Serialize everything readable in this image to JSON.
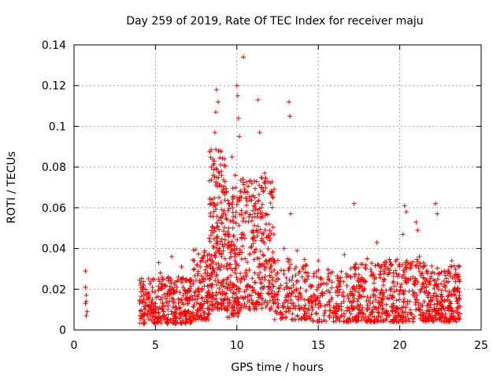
{
  "chart_data": {
    "type": "scatter",
    "title": "Day 259 of 2019, Rate Of TEC Index for receiver maju",
    "xlabel": "GPS time / hours",
    "ylabel": "ROTI / TECUs",
    "xlim": [
      0,
      25
    ],
    "ylim": [
      0,
      0.14
    ],
    "x_ticks": [
      0,
      5,
      10,
      15,
      20,
      25
    ],
    "x_tick_labels": [
      "0",
      "5",
      "10",
      "15",
      "20",
      "25"
    ],
    "y_ticks": [
      0,
      0.02,
      0.04,
      0.06,
      0.08,
      0.1,
      0.12,
      0.14
    ],
    "y_tick_labels": [
      "0",
      "0.02",
      "0.04",
      "0.06",
      "0.08",
      "0.1",
      "0.12",
      "0.14"
    ],
    "grid": true,
    "marker": "plus",
    "marker_color": "#ff0000",
    "series": [
      {
        "name": "ROTI",
        "points": [
          [
            0.7,
            0.029
          ],
          [
            0.7,
            0.021
          ],
          [
            0.75,
            0.017
          ],
          [
            0.75,
            0.014
          ],
          [
            0.7,
            0.013
          ],
          [
            0.8,
            0.009
          ],
          [
            0.75,
            0.007
          ],
          [
            4.1,
            0.023
          ],
          [
            4.2,
            0.02
          ],
          [
            4.3,
            0.017
          ],
          [
            4.2,
            0.014
          ],
          [
            4.4,
            0.012
          ],
          [
            4.1,
            0.009
          ],
          [
            4.5,
            0.007
          ],
          [
            4.3,
            0.005
          ],
          [
            4.6,
            0.015
          ],
          [
            4.7,
            0.011
          ],
          [
            4.8,
            0.019
          ],
          [
            4.9,
            0.008
          ],
          [
            5.0,
            0.013
          ],
          [
            5.1,
            0.006
          ],
          [
            5.2,
            0.033
          ],
          [
            5.3,
            0.028
          ],
          [
            5.2,
            0.01
          ],
          [
            5.4,
            0.016
          ],
          [
            5.5,
            0.009
          ],
          [
            5.6,
            0.022
          ],
          [
            5.7,
            0.004
          ],
          [
            5.8,
            0.012
          ],
          [
            5.9,
            0.018
          ],
          [
            6.0,
            0.036
          ],
          [
            6.1,
            0.014
          ],
          [
            6.2,
            0.007
          ],
          [
            6.3,
            0.021
          ],
          [
            6.4,
            0.026
          ],
          [
            6.5,
            0.011
          ],
          [
            6.6,
            0.031
          ],
          [
            6.7,
            0.017
          ],
          [
            6.8,
            0.008
          ],
          [
            6.9,
            0.024
          ],
          [
            7.0,
            0.013
          ],
          [
            7.1,
            0.019
          ],
          [
            7.4,
            0.03
          ],
          [
            7.6,
            0.02
          ],
          [
            7.8,
            0.012
          ],
          [
            7.9,
            0.025
          ],
          [
            8.0,
            0.038
          ],
          [
            8.1,
            0.016
          ],
          [
            8.2,
            0.028
          ],
          [
            8.3,
            0.045
          ],
          [
            8.4,
            0.022
          ],
          [
            8.5,
            0.034
          ],
          [
            8.55,
            0.081
          ],
          [
            8.6,
            0.05
          ],
          [
            8.65,
            0.097
          ],
          [
            8.7,
            0.107
          ],
          [
            8.75,
            0.118
          ],
          [
            8.8,
            0.072
          ],
          [
            8.85,
            0.112
          ],
          [
            8.9,
            0.065
          ],
          [
            8.95,
            0.088
          ],
          [
            9.0,
            0.055
          ],
          [
            9.05,
            0.078
          ],
          [
            9.1,
            0.042
          ],
          [
            9.15,
            0.069
          ],
          [
            9.2,
            0.031
          ],
          [
            9.25,
            0.084
          ],
          [
            9.3,
            0.047
          ],
          [
            9.4,
            0.025
          ],
          [
            9.5,
            0.062
          ],
          [
            9.6,
            0.038
          ],
          [
            9.7,
            0.085
          ],
          [
            9.8,
            0.053
          ],
          [
            9.9,
            0.076
          ],
          [
            10.0,
            0.12
          ],
          [
            10.05,
            0.115
          ],
          [
            10.1,
            0.104
          ],
          [
            10.15,
            0.095
          ],
          [
            10.2,
            0.068
          ],
          [
            10.3,
            0.045
          ],
          [
            10.4,
            0.134
          ],
          [
            10.5,
            0.035
          ],
          [
            10.6,
            0.058
          ],
          [
            10.7,
            0.022
          ],
          [
            10.8,
            0.073
          ],
          [
            10.9,
            0.041
          ],
          [
            11.0,
            0.066
          ],
          [
            11.1,
            0.028
          ],
          [
            11.2,
            0.049
          ],
          [
            11.3,
            0.113
          ],
          [
            11.4,
            0.097
          ],
          [
            11.5,
            0.06
          ],
          [
            11.6,
            0.037
          ],
          [
            11.7,
            0.077
          ],
          [
            11.8,
            0.052
          ],
          [
            11.9,
            0.073
          ],
          [
            12.0,
            0.044
          ],
          [
            12.1,
            0.018
          ],
          [
            12.2,
            0.065
          ],
          [
            12.3,
            0.034
          ],
          [
            12.5,
            0.028
          ],
          [
            12.7,
            0.022
          ],
          [
            12.9,
            0.04
          ],
          [
            13.0,
            0.016
          ],
          [
            13.2,
            0.112
          ],
          [
            13.25,
            0.105
          ],
          [
            13.3,
            0.057
          ],
          [
            13.5,
            0.019
          ],
          [
            13.7,
            0.039
          ],
          [
            13.8,
            0.012
          ],
          [
            14.0,
            0.026
          ],
          [
            14.2,
            0.009
          ],
          [
            14.5,
            0.022
          ],
          [
            14.7,
            0.014
          ],
          [
            14.9,
            0.008
          ],
          [
            15.0,
            0.034
          ],
          [
            15.2,
            0.018
          ],
          [
            15.4,
            0.012
          ],
          [
            15.6,
            0.026
          ],
          [
            15.8,
            0.015
          ],
          [
            16.0,
            0.009
          ],
          [
            16.2,
            0.021
          ],
          [
            16.4,
            0.013
          ],
          [
            16.6,
            0.037
          ],
          [
            16.8,
            0.011
          ],
          [
            17.0,
            0.018
          ],
          [
            17.2,
            0.062
          ],
          [
            17.4,
            0.014
          ],
          [
            17.6,
            0.024
          ],
          [
            17.8,
            0.008
          ],
          [
            18.0,
            0.035
          ],
          [
            18.2,
            0.016
          ],
          [
            18.4,
            0.027
          ],
          [
            18.6,
            0.043
          ],
          [
            18.8,
            0.012
          ],
          [
            19.0,
            0.022
          ],
          [
            19.2,
            0.009
          ],
          [
            19.4,
            0.017
          ],
          [
            19.6,
            0.028
          ],
          [
            19.8,
            0.011
          ],
          [
            20.0,
            0.019
          ],
          [
            20.2,
            0.047
          ],
          [
            20.3,
            0.061
          ],
          [
            20.4,
            0.058
          ],
          [
            20.6,
            0.014
          ],
          [
            20.8,
            0.026
          ],
          [
            21.0,
            0.053
          ],
          [
            21.1,
            0.049
          ],
          [
            21.2,
            0.036
          ],
          [
            21.4,
            0.012
          ],
          [
            21.6,
            0.024
          ],
          [
            21.8,
            0.018
          ],
          [
            22.0,
            0.009
          ],
          [
            22.2,
            0.062
          ],
          [
            22.3,
            0.057
          ],
          [
            22.4,
            0.028
          ],
          [
            22.6,
            0.015
          ],
          [
            22.8,
            0.021
          ],
          [
            23.0,
            0.011
          ],
          [
            23.2,
            0.034
          ],
          [
            23.4,
            0.017
          ],
          [
            23.6,
            0.031
          ],
          [
            23.7,
            0.008
          ]
        ]
      }
    ],
    "clusters": [
      {
        "x": [
          4.0,
          7.3
        ],
        "y": [
          0.003,
          0.026
        ],
        "n": 300
      },
      {
        "x": [
          7.3,
          8.3
        ],
        "y": [
          0.005,
          0.04
        ],
        "n": 120
      },
      {
        "x": [
          8.3,
          9.3
        ],
        "y": [
          0.01,
          0.09
        ],
        "n": 200
      },
      {
        "x": [
          9.3,
          10.2
        ],
        "y": [
          0.006,
          0.07
        ],
        "n": 150
      },
      {
        "x": [
          10.2,
          12.3
        ],
        "y": [
          0.01,
          0.075
        ],
        "n": 280
      },
      {
        "x": [
          12.3,
          14.3
        ],
        "y": [
          0.005,
          0.035
        ],
        "n": 140
      },
      {
        "x": [
          14.3,
          17.0
        ],
        "y": [
          0.004,
          0.03
        ],
        "n": 170
      },
      {
        "x": [
          17.0,
          19.0
        ],
        "y": [
          0.004,
          0.033
        ],
        "n": 200
      },
      {
        "x": [
          19.0,
          21.6
        ],
        "y": [
          0.004,
          0.035
        ],
        "n": 240
      },
      {
        "x": [
          21.6,
          23.7
        ],
        "y": [
          0.004,
          0.032
        ],
        "n": 240
      }
    ]
  }
}
